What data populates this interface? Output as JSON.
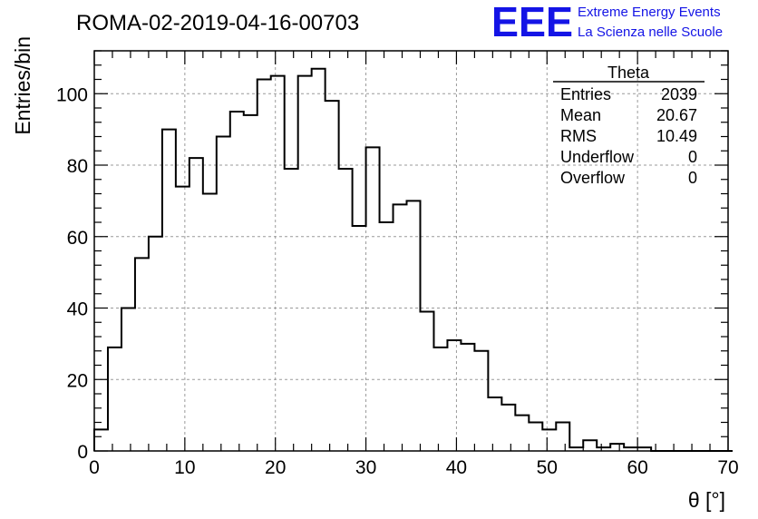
{
  "page": {
    "title": "ROMA-02-2019-04-16-00703",
    "logo": {
      "mark": "EEE",
      "line1": "Extreme Energy Events",
      "line2": "La Scienza nelle Scuole",
      "color": "#1414e6"
    }
  },
  "stats": {
    "name": "Theta",
    "rows": [
      {
        "label": "Entries",
        "value": "2039"
      },
      {
        "label": "Mean",
        "value": "20.67"
      },
      {
        "label": "RMS",
        "value": "10.49"
      },
      {
        "label": "Underflow",
        "value": "0"
      },
      {
        "label": "Overflow",
        "value": "0"
      }
    ]
  },
  "chart_data": {
    "type": "histogram",
    "title": "ROMA-02-2019-04-16-00703",
    "xlabel": "θ [°]",
    "ylabel": "Entries/bin",
    "xlim": [
      0,
      70
    ],
    "ylim": [
      0,
      112
    ],
    "bin_width": 1.5,
    "bin_edges_start": 0,
    "xticks": [
      0,
      10,
      20,
      30,
      40,
      50,
      60,
      70
    ],
    "yticks": [
      0,
      20,
      40,
      60,
      80,
      100
    ],
    "grid": true,
    "line_color": "#000000",
    "values": [
      6,
      29,
      40,
      54,
      60,
      90,
      74,
      82,
      72,
      88,
      95,
      94,
      104,
      105,
      79,
      105,
      107,
      98,
      79,
      63,
      85,
      64,
      69,
      70,
      39,
      29,
      31,
      30,
      28,
      15,
      13,
      10,
      8,
      6,
      8,
      1,
      3,
      1,
      2,
      1,
      1,
      0,
      0,
      0,
      0,
      0,
      0
    ]
  }
}
